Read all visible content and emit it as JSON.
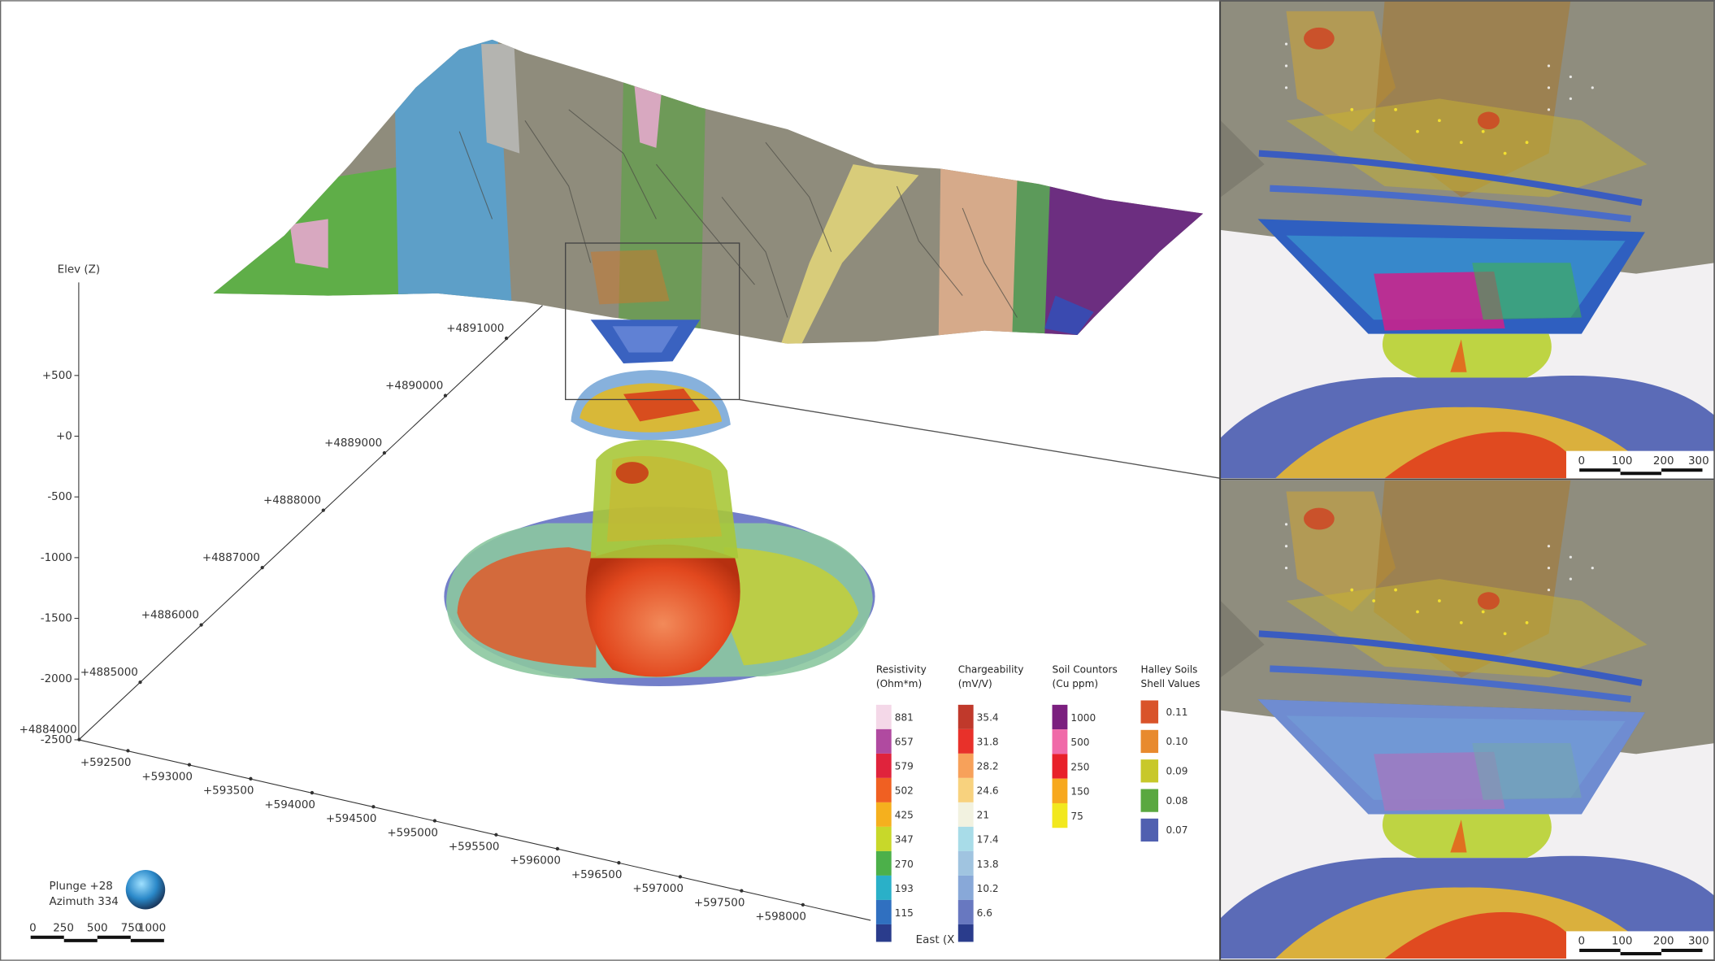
{
  "main_view": {
    "elevation_axis": {
      "label": "Elev (Z)",
      "ticks": [
        "+500",
        "+0",
        "-500",
        "-1000",
        "-1500",
        "-2000",
        "-2500"
      ]
    },
    "northing_axis": {
      "ticks": [
        "+4891000",
        "+4890000",
        "+4889000",
        "+4888000",
        "+4887000",
        "+4886000",
        "+4885000",
        "+4884000"
      ]
    },
    "easting_axis": {
      "label": "East (X",
      "ticks": [
        "+592500",
        "+593000",
        "+593500",
        "+594000",
        "+594500",
        "+595000",
        "+595500",
        "+596000",
        "+596500",
        "+597000",
        "+597500",
        "+598000"
      ]
    },
    "orientation": {
      "plunge": "Plunge +28",
      "azimuth": "Azimuth 334"
    },
    "scale_bar": [
      "0",
      "250",
      "500",
      "750",
      "1000"
    ]
  },
  "legends": [
    {
      "title": [
        "Resistivity",
        "(Ohm*m)"
      ],
      "items": [
        {
          "label": "881",
          "color": "#f4d8e8"
        },
        {
          "label": "657",
          "color": "#b04aa0"
        },
        {
          "label": "579",
          "color": "#e0233c"
        },
        {
          "label": "502",
          "color": "#f06022"
        },
        {
          "label": "425",
          "color": "#f5b01e"
        },
        {
          "label": "347",
          "color": "#c8d82a"
        },
        {
          "label": "270",
          "color": "#4cb04a"
        },
        {
          "label": "193",
          "color": "#2ab0c8"
        },
        {
          "label": "115",
          "color": "#3070c0"
        }
      ]
    },
    {
      "title": [
        "Chargeability",
        "(mV/V)"
      ],
      "items": [
        {
          "label": "35.4",
          "color": "#c0392b"
        },
        {
          "label": "31.8",
          "color": "#e8312a"
        },
        {
          "label": "28.2",
          "color": "#f7a15a"
        },
        {
          "label": "24.6",
          "color": "#f8d27e"
        },
        {
          "label": "21",
          "color": "#f2f2e0"
        },
        {
          "label": "17.4",
          "color": "#a8dce8"
        },
        {
          "label": "13.8",
          "color": "#a0c4e0"
        },
        {
          "label": "10.2",
          "color": "#88a8d8"
        },
        {
          "label": "6.6",
          "color": "#6878c0"
        }
      ]
    },
    {
      "title": [
        "Soil Countors",
        "(Cu ppm)"
      ],
      "items": [
        {
          "label": "1000",
          "color": "#7b1f7f"
        },
        {
          "label": "500",
          "color": "#f06aa8"
        },
        {
          "label": "250",
          "color": "#e8202a"
        },
        {
          "label": "150",
          "color": "#f7a81e"
        },
        {
          "label": "75",
          "color": "#f2e81e"
        }
      ]
    },
    {
      "title": [
        "Halley Soils",
        "Shell Values"
      ],
      "items": [
        {
          "label": "0.11",
          "color": "#d9532a"
        },
        {
          "label": "0.10",
          "color": "#e88a2e"
        },
        {
          "label": "0.09",
          "color": "#c8c82a"
        },
        {
          "label": "0.08",
          "color": "#5aa840"
        },
        {
          "label": "0.07",
          "color": "#5060b0"
        }
      ]
    }
  ],
  "insets": [
    {
      "scale_bar": [
        "0",
        "100",
        "200",
        "300"
      ]
    },
    {
      "scale_bar": [
        "0",
        "100",
        "200",
        "300"
      ]
    }
  ]
}
